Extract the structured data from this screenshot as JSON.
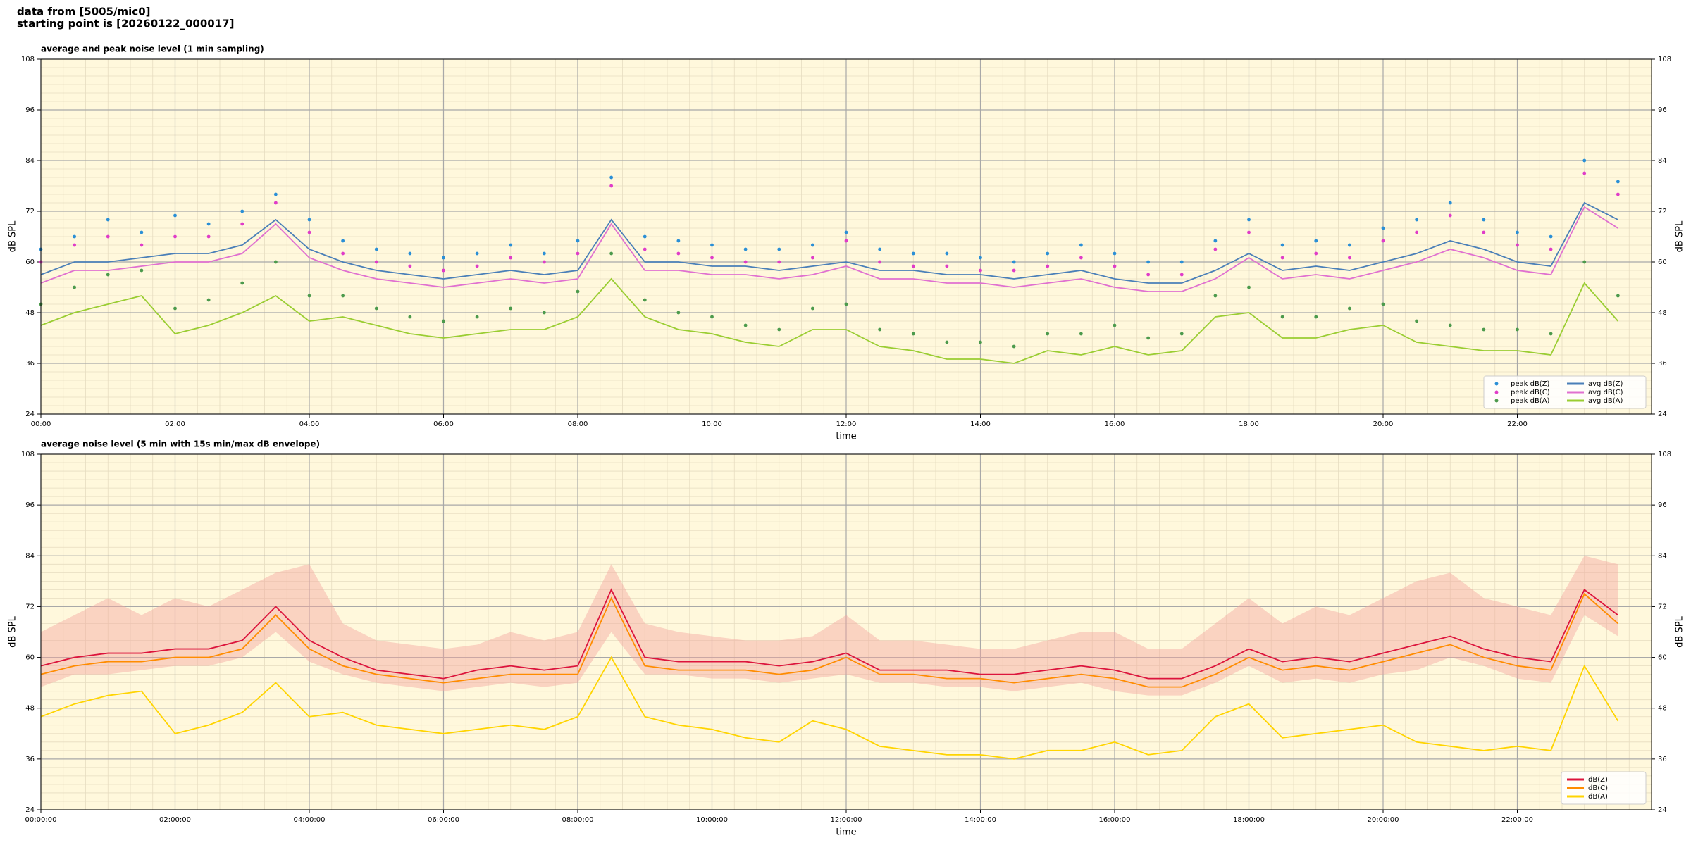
{
  "header": [
    "data from [5005/mic0]",
    "starting point is [20260122_000017]"
  ],
  "chart_data": [
    {
      "type": "line",
      "title": "average and peak noise level (1 min sampling)",
      "xlabel": "time",
      "ylabel": "dB SPL",
      "xlim": [
        "00:00",
        "24:00"
      ],
      "xticks": [
        "00:00",
        "02:00",
        "04:00",
        "06:00",
        "08:00",
        "10:00",
        "12:00",
        "14:00",
        "16:00",
        "18:00",
        "20:00",
        "22:00"
      ],
      "ylim": [
        24,
        108
      ],
      "yticks": [
        24,
        36,
        48,
        60,
        72,
        84,
        96,
        108
      ],
      "grid": true,
      "background": "#fff8dc",
      "legend": "lower right",
      "x": [
        "00:00",
        "00:30",
        "01:00",
        "01:30",
        "02:00",
        "02:30",
        "03:00",
        "03:30",
        "04:00",
        "04:30",
        "05:00",
        "05:30",
        "06:00",
        "06:30",
        "07:00",
        "07:30",
        "08:00",
        "08:30",
        "09:00",
        "09:30",
        "10:00",
        "10:30",
        "11:00",
        "11:30",
        "12:00",
        "12:30",
        "13:00",
        "13:30",
        "14:00",
        "14:30",
        "15:00",
        "15:30",
        "16:00",
        "16:30",
        "17:00",
        "17:30",
        "18:00",
        "18:30",
        "19:00",
        "19:30",
        "20:00",
        "20:30",
        "21:00",
        "21:30",
        "22:00",
        "22:30",
        "23:00",
        "23:30"
      ],
      "series": [
        {
          "name": "peak dB(Z)",
          "style": "points",
          "color": "#2a8fd6",
          "values": [
            63,
            66,
            70,
            67,
            71,
            69,
            72,
            76,
            70,
            65,
            63,
            62,
            61,
            62,
            64,
            62,
            65,
            80,
            66,
            65,
            64,
            63,
            63,
            64,
            67,
            63,
            62,
            62,
            61,
            60,
            62,
            64,
            62,
            60,
            60,
            65,
            70,
            64,
            65,
            64,
            68,
            70,
            74,
            70,
            67,
            66,
            84,
            79
          ]
        },
        {
          "name": "peak dB(C)",
          "style": "points",
          "color": "#e03cc8",
          "values": [
            60,
            64,
            66,
            64,
            66,
            66,
            69,
            74,
            67,
            62,
            60,
            59,
            58,
            59,
            61,
            60,
            62,
            78,
            63,
            62,
            61,
            60,
            60,
            61,
            65,
            60,
            59,
            59,
            58,
            58,
            59,
            61,
            59,
            57,
            57,
            63,
            67,
            61,
            62,
            61,
            65,
            67,
            71,
            67,
            64,
            63,
            81,
            76
          ]
        },
        {
          "name": "peak dB(A)",
          "style": "points",
          "color": "#4c9a4c",
          "values": [
            50,
            54,
            57,
            58,
            49,
            51,
            55,
            60,
            52,
            52,
            49,
            47,
            46,
            47,
            49,
            48,
            53,
            62,
            51,
            48,
            47,
            45,
            44,
            49,
            50,
            44,
            43,
            41,
            41,
            40,
            43,
            43,
            45,
            42,
            43,
            52,
            54,
            47,
            47,
            49,
            50,
            46,
            45,
            44,
            44,
            43,
            60,
            52
          ]
        },
        {
          "name": "avg dB(Z)",
          "style": "line",
          "color": "#4a7fb8",
          "values": [
            57,
            60,
            60,
            61,
            62,
            62,
            64,
            70,
            63,
            60,
            58,
            57,
            56,
            57,
            58,
            57,
            58,
            70,
            60,
            60,
            59,
            59,
            58,
            59,
            60,
            58,
            58,
            57,
            57,
            56,
            57,
            58,
            56,
            55,
            55,
            58,
            62,
            58,
            59,
            58,
            60,
            62,
            65,
            63,
            60,
            59,
            74,
            70
          ]
        },
        {
          "name": "avg dB(C)",
          "style": "line",
          "color": "#e070d0",
          "values": [
            55,
            58,
            58,
            59,
            60,
            60,
            62,
            69,
            61,
            58,
            56,
            55,
            54,
            55,
            56,
            55,
            56,
            69,
            58,
            58,
            57,
            57,
            56,
            57,
            59,
            56,
            56,
            55,
            55,
            54,
            55,
            56,
            54,
            53,
            53,
            56,
            61,
            56,
            57,
            56,
            58,
            60,
            63,
            61,
            58,
            57,
            73,
            68
          ]
        },
        {
          "name": "avg dB(A)",
          "style": "line",
          "color": "#9acd32",
          "values": [
            45,
            48,
            50,
            52,
            43,
            45,
            48,
            52,
            46,
            47,
            45,
            43,
            42,
            43,
            44,
            44,
            47,
            56,
            47,
            44,
            43,
            41,
            40,
            44,
            44,
            40,
            39,
            37,
            37,
            36,
            39,
            38,
            40,
            38,
            39,
            47,
            48,
            42,
            42,
            44,
            45,
            41,
            40,
            39,
            39,
            38,
            55,
            46
          ]
        }
      ]
    },
    {
      "type": "line",
      "title": "average noise level (5 min with 15s min/max dB envelope)",
      "xlabel": "time",
      "ylabel": "dB SPL",
      "xlim": [
        "00:00:00",
        "24:00:00"
      ],
      "xticks": [
        "00:00:00",
        "02:00:00",
        "04:00:00",
        "06:00:00",
        "08:00:00",
        "10:00:00",
        "12:00:00",
        "14:00:00",
        "16:00:00",
        "18:00:00",
        "20:00:00",
        "22:00:00"
      ],
      "ylim": [
        24,
        108
      ],
      "yticks": [
        24,
        36,
        48,
        60,
        72,
        84,
        96,
        108
      ],
      "grid": true,
      "background": "#fff8dc",
      "legend": "lower right",
      "x": [
        "00:00:00",
        "00:30:00",
        "01:00:00",
        "01:30:00",
        "02:00:00",
        "02:30:00",
        "03:00:00",
        "03:30:00",
        "04:00:00",
        "04:30:00",
        "05:00:00",
        "05:30:00",
        "06:00:00",
        "06:30:00",
        "07:00:00",
        "07:30:00",
        "08:00:00",
        "08:30:00",
        "09:00:00",
        "09:30:00",
        "10:00:00",
        "10:30:00",
        "11:00:00",
        "11:30:00",
        "12:00:00",
        "12:30:00",
        "13:00:00",
        "13:30:00",
        "14:00:00",
        "14:30:00",
        "15:00:00",
        "15:30:00",
        "16:00:00",
        "16:30:00",
        "17:00:00",
        "17:30:00",
        "18:00:00",
        "18:30:00",
        "19:00:00",
        "19:30:00",
        "20:00:00",
        "20:30:00",
        "21:00:00",
        "21:30:00",
        "22:00:00",
        "22:30:00",
        "23:00:00",
        "23:30:00"
      ],
      "band": {
        "color": "#f4a6a0",
        "low": [
          53,
          56,
          56,
          57,
          58,
          58,
          60,
          66,
          59,
          56,
          54,
          53,
          52,
          53,
          54,
          53,
          54,
          66,
          56,
          56,
          55,
          55,
          54,
          55,
          56,
          54,
          54,
          53,
          53,
          52,
          53,
          54,
          52,
          51,
          51,
          54,
          58,
          54,
          55,
          54,
          56,
          57,
          60,
          58,
          55,
          54,
          70,
          65
        ],
        "high": [
          66,
          70,
          74,
          70,
          74,
          72,
          76,
          80,
          82,
          68,
          64,
          63,
          62,
          63,
          66,
          64,
          66,
          82,
          68,
          66,
          65,
          64,
          64,
          65,
          70,
          64,
          64,
          63,
          62,
          62,
          64,
          66,
          66,
          62,
          62,
          68,
          74,
          68,
          72,
          70,
          74,
          78,
          80,
          74,
          72,
          70,
          84,
          82
        ]
      },
      "series": [
        {
          "name": "dB(Z)",
          "style": "line",
          "color": "#dc143c",
          "values": [
            58,
            60,
            61,
            61,
            62,
            62,
            64,
            72,
            64,
            60,
            57,
            56,
            55,
            57,
            58,
            57,
            58,
            76,
            60,
            59,
            59,
            59,
            58,
            59,
            61,
            57,
            57,
            57,
            56,
            56,
            57,
            58,
            57,
            55,
            55,
            58,
            62,
            59,
            60,
            59,
            61,
            63,
            65,
            62,
            60,
            59,
            76,
            70
          ]
        },
        {
          "name": "dB(C)",
          "style": "line",
          "color": "#ff8c00",
          "values": [
            56,
            58,
            59,
            59,
            60,
            60,
            62,
            70,
            62,
            58,
            56,
            55,
            54,
            55,
            56,
            56,
            56,
            74,
            58,
            57,
            57,
            57,
            56,
            57,
            60,
            56,
            56,
            55,
            55,
            54,
            55,
            56,
            55,
            53,
            53,
            56,
            60,
            57,
            58,
            57,
            59,
            61,
            63,
            60,
            58,
            57,
            75,
            68
          ]
        },
        {
          "name": "dB(A)",
          "style": "line",
          "color": "#ffd400",
          "values": [
            46,
            49,
            51,
            52,
            42,
            44,
            47,
            54,
            46,
            47,
            44,
            43,
            42,
            43,
            44,
            43,
            46,
            60,
            46,
            44,
            43,
            41,
            40,
            45,
            43,
            39,
            38,
            37,
            37,
            36,
            38,
            38,
            40,
            37,
            38,
            46,
            49,
            41,
            42,
            43,
            44,
            40,
            39,
            38,
            39,
            38,
            58,
            45
          ]
        }
      ]
    }
  ]
}
